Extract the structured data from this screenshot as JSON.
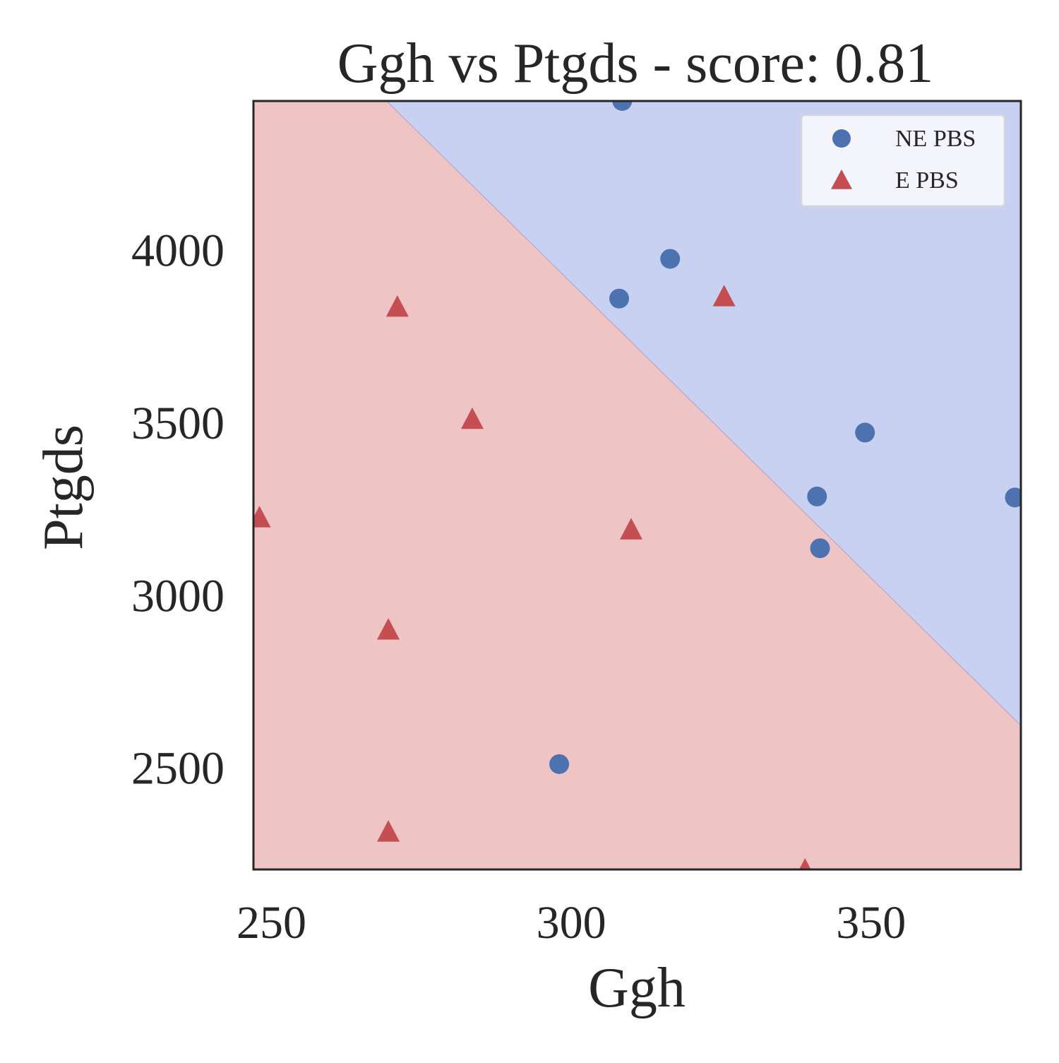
{
  "chart_data": {
    "type": "scatter",
    "title": "Ggh vs Ptgds - score: 0.81",
    "xlabel": "Ggh",
    "ylabel": "Ptgds",
    "xlim": [
      247,
      375
    ],
    "ylim": [
      2205,
      4430
    ],
    "xticks": [
      250,
      300,
      350
    ],
    "yticks": [
      2500,
      3000,
      3500,
      4000
    ],
    "grid": false,
    "legend_position": "top-right",
    "decision_boundary": {
      "points": [
        [
          269.2,
          4430
        ],
        [
          375,
          2622
        ]
      ],
      "regions": [
        {
          "side": "upper-right",
          "color": "#c8d1f2",
          "class": "NE PBS"
        },
        {
          "side": "lower-left",
          "color": "#eec4c4",
          "class": "E PBS"
        }
      ]
    },
    "series": [
      {
        "name": "NE PBS",
        "marker": "circle",
        "color": "#4c72b0",
        "points": [
          [
            308.5,
            4430
          ],
          [
            316.5,
            3973
          ],
          [
            308,
            3858
          ],
          [
            349,
            3470
          ],
          [
            341,
            3285
          ],
          [
            374,
            3282
          ],
          [
            341.5,
            3135
          ],
          [
            298,
            2510
          ]
        ]
      },
      {
        "name": "E PBS",
        "marker": "triangle",
        "color": "#c44e52",
        "points": [
          [
            271,
            3835
          ],
          [
            325.5,
            3865
          ],
          [
            283.5,
            3510
          ],
          [
            248,
            3225
          ],
          [
            310,
            3190
          ],
          [
            269.5,
            2900
          ],
          [
            269.5,
            2315
          ],
          [
            339,
            2205
          ]
        ]
      }
    ]
  }
}
